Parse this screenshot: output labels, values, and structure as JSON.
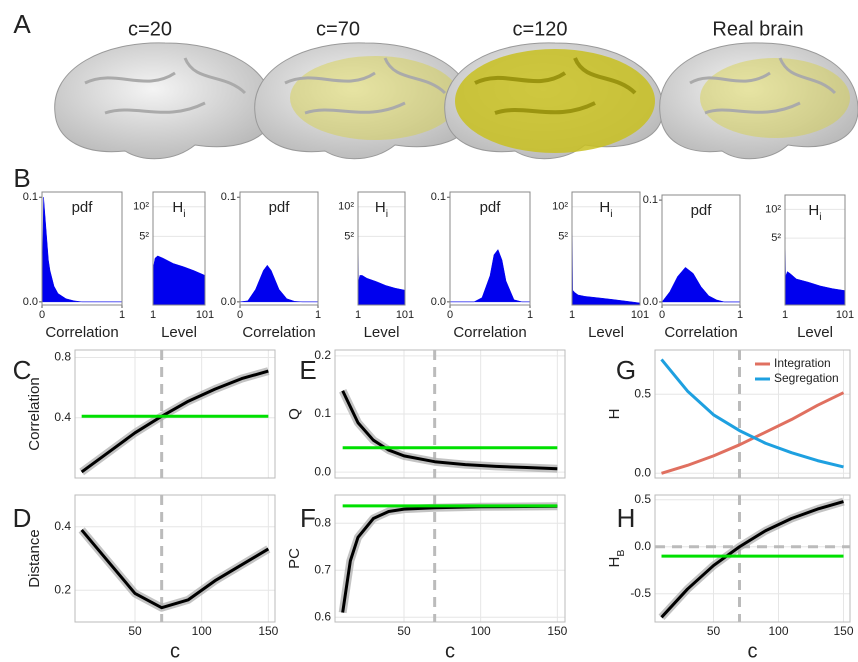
{
  "panel_labels": [
    "A",
    "B",
    "C",
    "D",
    "E",
    "F",
    "G",
    "H"
  ],
  "brain_titles": [
    "c=20",
    "c=70",
    "c=120",
    "Real brain"
  ],
  "chart_data": [
    {
      "type": "area",
      "title": "pdf",
      "xlabel": "Correlation",
      "xlim": [
        0,
        1
      ],
      "ylim": [
        -0.003,
        0.105
      ],
      "xticks": [
        0,
        1
      ],
      "yticks": [
        {
          "value": 0,
          "label": "0.0"
        },
        0.1
      ],
      "grid": false,
      "series": [
        {
          "color": "#0000ee",
          "x": [
            0,
            0.02,
            0.05,
            0.08,
            0.1,
            0.15,
            0.2,
            0.3,
            0.4,
            0.5,
            0.6,
            0.7,
            0.8,
            0.9,
            1
          ],
          "values": [
            0,
            0.1,
            0.07,
            0.04,
            0.03,
            0.015,
            0.008,
            0.003,
            0.001,
            0,
            0,
            0,
            0,
            0,
            0
          ]
        }
      ]
    },
    {
      "type": "area",
      "title": "H",
      "title_sub": "i",
      "xlabel": "Level",
      "xlim": [
        1,
        101
      ],
      "ylim": [
        1,
        200
      ],
      "log_y": true,
      "xticks": [
        1,
        101
      ],
      "yticks": [
        {
          "value": 25,
          "label": "5²"
        },
        {
          "value": 100,
          "label": "10²"
        }
      ],
      "grid": true,
      "series": [
        {
          "color": "#0000ee",
          "x": [
            1,
            2,
            5,
            10,
            20,
            40,
            60,
            80,
            101
          ],
          "values": [
            6,
            6,
            9,
            10,
            9,
            7,
            6,
            5,
            4
          ]
        }
      ]
    },
    {
      "type": "area",
      "title": "pdf",
      "xlabel": "Correlation",
      "xlim": [
        0,
        1
      ],
      "ylim": [
        -0.003,
        0.105
      ],
      "xticks": [
        0,
        1
      ],
      "yticks": [
        {
          "value": 0,
          "label": "0.0"
        },
        0.1
      ],
      "grid": false,
      "series": [
        {
          "color": "#0000ee",
          "x": [
            0,
            0.1,
            0.2,
            0.3,
            0.35,
            0.4,
            0.5,
            0.6,
            0.7,
            0.8,
            1
          ],
          "values": [
            0,
            0.001,
            0.012,
            0.03,
            0.035,
            0.03,
            0.012,
            0.003,
            0.0005,
            0,
            0
          ]
        }
      ]
    },
    {
      "type": "area",
      "title": "H",
      "title_sub": "i",
      "xlabel": "Level",
      "xlim": [
        1,
        101
      ],
      "ylim": [
        1,
        200
      ],
      "log_y": true,
      "xticks": [
        1,
        101
      ],
      "yticks": [
        {
          "value": 25,
          "label": "5²"
        },
        {
          "value": 100,
          "label": "10²"
        }
      ],
      "grid": true,
      "series": [
        {
          "color": "#0000ee",
          "x": [
            1,
            2,
            5,
            10,
            20,
            40,
            60,
            80,
            101
          ],
          "values": [
            60,
            3,
            4,
            4,
            3.5,
            3,
            2.5,
            2.2,
            2
          ]
        }
      ]
    },
    {
      "type": "area",
      "title": "pdf",
      "xlabel": "Correlation",
      "xlim": [
        0,
        1
      ],
      "ylim": [
        -0.003,
        0.105
      ],
      "xticks": [
        0,
        1
      ],
      "yticks": [
        {
          "value": 0,
          "label": "0.0"
        },
        0.1
      ],
      "grid": false,
      "series": [
        {
          "color": "#0000ee",
          "x": [
            0,
            0.3,
            0.4,
            0.5,
            0.55,
            0.6,
            0.65,
            0.7,
            0.8,
            0.9,
            1
          ],
          "values": [
            0,
            0,
            0.004,
            0.025,
            0.045,
            0.05,
            0.04,
            0.02,
            0.002,
            0,
            0
          ]
        }
      ]
    },
    {
      "type": "area",
      "title": "H",
      "title_sub": "i",
      "xlabel": "Level",
      "xlim": [
        1,
        101
      ],
      "ylim": [
        1,
        200
      ],
      "log_y": true,
      "xticks": [
        1,
        101
      ],
      "yticks": [
        {
          "value": 25,
          "label": "5²"
        },
        {
          "value": 100,
          "label": "10²"
        }
      ],
      "grid": true,
      "series": [
        {
          "color": "#0000ee",
          "x": [
            1,
            2,
            5,
            10,
            20,
            40,
            60,
            80,
            101
          ],
          "values": [
            150,
            2,
            1.8,
            1.6,
            1.5,
            1.4,
            1.3,
            1.2,
            1.1
          ]
        }
      ]
    },
    {
      "type": "area",
      "title": "pdf",
      "xlabel": "Correlation",
      "xlim": [
        0,
        1
      ],
      "ylim": [
        -0.003,
        0.105
      ],
      "xticks": [
        0,
        1
      ],
      "yticks": [
        {
          "value": 0,
          "label": "0.0"
        },
        0.1
      ],
      "grid": false,
      "series": [
        {
          "color": "#0000ee",
          "x": [
            0,
            0.1,
            0.2,
            0.3,
            0.4,
            0.5,
            0.6,
            0.7,
            0.8,
            1
          ],
          "values": [
            0,
            0.01,
            0.025,
            0.034,
            0.028,
            0.015,
            0.006,
            0.002,
            0,
            0
          ]
        }
      ]
    },
    {
      "type": "area",
      "title": "H",
      "title_sub": "i",
      "xlabel": "Level",
      "xlim": [
        1,
        101
      ],
      "ylim": [
        1,
        200
      ],
      "log_y": true,
      "xticks": [
        1,
        101
      ],
      "yticks": [
        {
          "value": 25,
          "label": "5²"
        },
        {
          "value": 100,
          "label": "10²"
        }
      ],
      "grid": true,
      "series": [
        {
          "color": "#0000ee",
          "x": [
            1,
            2,
            5,
            10,
            20,
            40,
            60,
            80,
            101
          ],
          "values": [
            40,
            4,
            5,
            4.5,
            3.5,
            3,
            2.5,
            2.2,
            2
          ]
        }
      ]
    },
    {
      "type": "line",
      "ylabel": "Correlation",
      "xlim": [
        5,
        155
      ],
      "ylim": [
        0,
        0.85
      ],
      "xticks": [
        50,
        100,
        150
      ],
      "show_xtick_labels": false,
      "yticks": [
        0.4,
        0.8
      ],
      "grid": true,
      "vline": 70,
      "series": [
        {
          "color": "#000000",
          "x": [
            10,
            30,
            50,
            70,
            90,
            110,
            130,
            150
          ],
          "values": [
            0.04,
            0.17,
            0.3,
            0.41,
            0.51,
            0.59,
            0.66,
            0.71
          ]
        },
        {
          "color": "#00e000",
          "x": [
            10,
            150
          ],
          "values": [
            0.41,
            0.41
          ]
        }
      ]
    },
    {
      "type": "line",
      "ylabel": "Distance",
      "xlabel": "c",
      "xlim": [
        5,
        155
      ],
      "ylim": [
        0.1,
        0.5
      ],
      "xticks": [
        50,
        100,
        150
      ],
      "yticks": [
        0.2,
        0.4
      ],
      "grid": true,
      "vline": 70,
      "series": [
        {
          "color": "#000000",
          "x": [
            10,
            30,
            50,
            70,
            90,
            110,
            130,
            150
          ],
          "values": [
            0.39,
            0.29,
            0.19,
            0.145,
            0.17,
            0.23,
            0.28,
            0.33
          ]
        }
      ]
    },
    {
      "type": "line",
      "ylabel": "Q",
      "xlim": [
        5,
        155
      ],
      "ylim": [
        -0.01,
        0.21
      ],
      "xticks": [
        50,
        100,
        150
      ],
      "show_xtick_labels": false,
      "yticks": [
        {
          "value": 0,
          "label": "0.0"
        },
        0.1,
        0.2
      ],
      "grid": true,
      "vline": 70,
      "series": [
        {
          "color": "#000000",
          "x": [
            10,
            20,
            30,
            40,
            50,
            70,
            90,
            110,
            130,
            150
          ],
          "values": [
            0.14,
            0.085,
            0.055,
            0.038,
            0.028,
            0.018,
            0.013,
            0.01,
            0.008,
            0.006
          ]
        },
        {
          "color": "#00e000",
          "x": [
            10,
            150
          ],
          "values": [
            0.042,
            0.042
          ]
        }
      ]
    },
    {
      "type": "line",
      "ylabel": "PC",
      "xlabel": "c",
      "xlim": [
        5,
        155
      ],
      "ylim": [
        0.59,
        0.86
      ],
      "xticks": [
        50,
        100,
        150
      ],
      "yticks": [
        0.6,
        0.7,
        0.8
      ],
      "grid": true,
      "vline": 70,
      "series": [
        {
          "color": "#000000",
          "x": [
            10,
            15,
            20,
            30,
            40,
            50,
            70,
            100,
            150
          ],
          "values": [
            0.61,
            0.72,
            0.77,
            0.81,
            0.825,
            0.83,
            0.833,
            0.835,
            0.836
          ]
        },
        {
          "color": "#00e000",
          "x": [
            10,
            150
          ],
          "values": [
            0.837,
            0.837
          ]
        }
      ]
    },
    {
      "type": "line",
      "ylabel": "H",
      "xlim": [
        5,
        155
      ],
      "ylim": [
        -0.03,
        0.78
      ],
      "xticks": [
        50,
        100,
        150
      ],
      "show_xtick_labels": false,
      "yticks": [
        {
          "value": 0,
          "label": "0.0"
        },
        0.5
      ],
      "grid": true,
      "vline": 70,
      "legend": "top-right",
      "series": [
        {
          "name": "Integration",
          "color": "#e07060",
          "x": [
            10,
            30,
            50,
            70,
            90,
            110,
            130,
            150
          ],
          "values": [
            0,
            0.05,
            0.11,
            0.18,
            0.26,
            0.34,
            0.43,
            0.51
          ]
        },
        {
          "name": "Segregation",
          "color": "#1ea0e0",
          "x": [
            10,
            30,
            50,
            70,
            90,
            110,
            130,
            150
          ],
          "values": [
            0.72,
            0.52,
            0.37,
            0.27,
            0.19,
            0.13,
            0.08,
            0.04
          ]
        }
      ]
    },
    {
      "type": "line",
      "ylabel": "H",
      "ylabel_sub": "B",
      "xlabel": "c",
      "xlim": [
        5,
        155
      ],
      "ylim": [
        -0.8,
        0.55
      ],
      "xticks": [
        50,
        100,
        150
      ],
      "yticks": [
        -0.5,
        {
          "value": 0,
          "label": "0.0"
        },
        0.5
      ],
      "grid": true,
      "vline": 70,
      "hline": 0,
      "series": [
        {
          "color": "#000000",
          "x": [
            10,
            30,
            50,
            70,
            90,
            110,
            130,
            150
          ],
          "values": [
            -0.75,
            -0.45,
            -0.2,
            0,
            0.17,
            0.3,
            0.4,
            0.48
          ]
        },
        {
          "color": "#00e000",
          "x": [
            10,
            150
          ],
          "values": [
            -0.1,
            -0.1
          ]
        }
      ]
    }
  ]
}
